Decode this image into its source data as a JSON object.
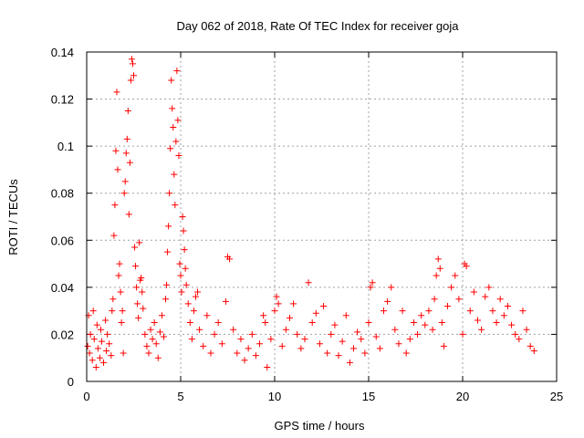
{
  "chart_data": {
    "type": "scatter",
    "title": "Day 062 of 2018, Rate Of TEC Index for receiver goja",
    "xlabel": "GPS time / hours",
    "ylabel": "ROTI / TECUs",
    "xlim": [
      0,
      25
    ],
    "ylim": [
      0,
      0.14
    ],
    "xticks": [
      0,
      5,
      10,
      15,
      20,
      25
    ],
    "xtick_labels": [
      "0",
      "5",
      "10",
      "15",
      "20",
      "25"
    ],
    "yticks": [
      0,
      0.02,
      0.04,
      0.06,
      0.08,
      0.1,
      0.12,
      0.14
    ],
    "ytick_labels": [
      "0",
      "0.02",
      "0.04",
      "0.06",
      "0.08",
      "0.1",
      "0.12",
      "0.14"
    ],
    "grid": true,
    "marker": "+",
    "color": "#ff0000",
    "series": [
      {
        "name": "ROTI",
        "points": [
          [
            0.05,
            0.015
          ],
          [
            0.1,
            0.028
          ],
          [
            0.15,
            0.012
          ],
          [
            0.2,
            0.02
          ],
          [
            0.3,
            0.009
          ],
          [
            0.35,
            0.03
          ],
          [
            0.4,
            0.018
          ],
          [
            0.5,
            0.006
          ],
          [
            0.55,
            0.024
          ],
          [
            0.6,
            0.014
          ],
          [
            0.7,
            0.01
          ],
          [
            0.75,
            0.022
          ],
          [
            0.8,
            0.017
          ],
          [
            0.9,
            0.008
          ],
          [
            1.0,
            0.026
          ],
          [
            1.05,
            0.013
          ],
          [
            1.1,
            0.02
          ],
          [
            1.2,
            0.016
          ],
          [
            1.3,
            0.011
          ],
          [
            1.35,
            0.03
          ],
          [
            1.4,
            0.035
          ],
          [
            1.45,
            0.062
          ],
          [
            1.5,
            0.075
          ],
          [
            1.55,
            0.098
          ],
          [
            1.6,
            0.123
          ],
          [
            1.65,
            0.09
          ],
          [
            1.7,
            0.045
          ],
          [
            1.75,
            0.05
          ],
          [
            1.8,
            0.038
          ],
          [
            1.85,
            0.025
          ],
          [
            1.9,
            0.03
          ],
          [
            1.95,
            0.012
          ],
          [
            2.0,
            0.08
          ],
          [
            2.05,
            0.085
          ],
          [
            2.1,
            0.097
          ],
          [
            2.15,
            0.103
          ],
          [
            2.2,
            0.115
          ],
          [
            2.25,
            0.071
          ],
          [
            2.3,
            0.093
          ],
          [
            2.35,
            0.128
          ],
          [
            2.4,
            0.137
          ],
          [
            2.45,
            0.135
          ],
          [
            2.5,
            0.13
          ],
          [
            2.55,
            0.057
          ],
          [
            2.6,
            0.049
          ],
          [
            2.65,
            0.04
          ],
          [
            2.7,
            0.033
          ],
          [
            2.75,
            0.027
          ],
          [
            2.8,
            0.059
          ],
          [
            2.85,
            0.043
          ],
          [
            2.9,
            0.044
          ],
          [
            2.95,
            0.038
          ],
          [
            3.0,
            0.031
          ],
          [
            3.1,
            0.02
          ],
          [
            3.2,
            0.015
          ],
          [
            3.3,
            0.012
          ],
          [
            3.4,
            0.022
          ],
          [
            3.5,
            0.018
          ],
          [
            3.6,
            0.025
          ],
          [
            3.7,
            0.016
          ],
          [
            3.8,
            0.01
          ],
          [
            3.9,
            0.021
          ],
          [
            4.0,
            0.028
          ],
          [
            4.1,
            0.019
          ],
          [
            4.2,
            0.035
          ],
          [
            4.25,
            0.041
          ],
          [
            4.3,
            0.055
          ],
          [
            4.35,
            0.066
          ],
          [
            4.4,
            0.08
          ],
          [
            4.45,
            0.099
          ],
          [
            4.5,
            0.128
          ],
          [
            4.55,
            0.116
          ],
          [
            4.6,
            0.108
          ],
          [
            4.65,
            0.088
          ],
          [
            4.7,
            0.075
          ],
          [
            4.75,
            0.102
          ],
          [
            4.8,
            0.132
          ],
          [
            4.85,
            0.111
          ],
          [
            4.9,
            0.096
          ],
          [
            4.95,
            0.05
          ],
          [
            5.0,
            0.045
          ],
          [
            5.05,
            0.038
          ],
          [
            5.1,
            0.07
          ],
          [
            5.15,
            0.064
          ],
          [
            5.2,
            0.056
          ],
          [
            5.25,
            0.048
          ],
          [
            5.3,
            0.041
          ],
          [
            5.4,
            0.033
          ],
          [
            5.5,
            0.025
          ],
          [
            5.6,
            0.018
          ],
          [
            5.7,
            0.03
          ],
          [
            5.8,
            0.036
          ],
          [
            5.9,
            0.038
          ],
          [
            6.0,
            0.022
          ],
          [
            6.2,
            0.015
          ],
          [
            6.4,
            0.028
          ],
          [
            6.6,
            0.012
          ],
          [
            6.8,
            0.02
          ],
          [
            7.0,
            0.025
          ],
          [
            7.2,
            0.016
          ],
          [
            7.4,
            0.034
          ],
          [
            7.5,
            0.053
          ],
          [
            7.6,
            0.052
          ],
          [
            7.8,
            0.022
          ],
          [
            8.0,
            0.012
          ],
          [
            8.2,
            0.018
          ],
          [
            8.4,
            0.009
          ],
          [
            8.6,
            0.014
          ],
          [
            8.8,
            0.02
          ],
          [
            9.0,
            0.011
          ],
          [
            9.2,
            0.016
          ],
          [
            9.4,
            0.028
          ],
          [
            9.5,
            0.025
          ],
          [
            9.6,
            0.006
          ],
          [
            9.8,
            0.018
          ],
          [
            10.0,
            0.03
          ],
          [
            10.1,
            0.036
          ],
          [
            10.2,
            0.033
          ],
          [
            10.4,
            0.015
          ],
          [
            10.6,
            0.022
          ],
          [
            10.8,
            0.027
          ],
          [
            11.0,
            0.033
          ],
          [
            11.2,
            0.02
          ],
          [
            11.4,
            0.014
          ],
          [
            11.6,
            0.018
          ],
          [
            11.8,
            0.042
          ],
          [
            12.0,
            0.025
          ],
          [
            12.2,
            0.029
          ],
          [
            12.4,
            0.016
          ],
          [
            12.6,
            0.032
          ],
          [
            12.8,
            0.012
          ],
          [
            13.0,
            0.02
          ],
          [
            13.2,
            0.024
          ],
          [
            13.4,
            0.011
          ],
          [
            13.6,
            0.017
          ],
          [
            13.8,
            0.028
          ],
          [
            14.0,
            0.008
          ],
          [
            14.2,
            0.014
          ],
          [
            14.4,
            0.021
          ],
          [
            14.6,
            0.018
          ],
          [
            14.8,
            0.012
          ],
          [
            15.0,
            0.025
          ],
          [
            15.1,
            0.04
          ],
          [
            15.2,
            0.042
          ],
          [
            15.4,
            0.019
          ],
          [
            15.6,
            0.014
          ],
          [
            15.8,
            0.03
          ],
          [
            16.0,
            0.034
          ],
          [
            16.2,
            0.04
          ],
          [
            16.4,
            0.022
          ],
          [
            16.6,
            0.016
          ],
          [
            16.8,
            0.03
          ],
          [
            17.0,
            0.012
          ],
          [
            17.2,
            0.018
          ],
          [
            17.4,
            0.025
          ],
          [
            17.6,
            0.02
          ],
          [
            17.8,
            0.028
          ],
          [
            18.0,
            0.024
          ],
          [
            18.2,
            0.03
          ],
          [
            18.4,
            0.022
          ],
          [
            18.5,
            0.035
          ],
          [
            18.6,
            0.045
          ],
          [
            18.7,
            0.052
          ],
          [
            18.8,
            0.048
          ],
          [
            18.9,
            0.025
          ],
          [
            19.0,
            0.015
          ],
          [
            19.2,
            0.032
          ],
          [
            19.4,
            0.04
          ],
          [
            19.6,
            0.045
          ],
          [
            19.8,
            0.035
          ],
          [
            20.0,
            0.02
          ],
          [
            20.1,
            0.05
          ],
          [
            20.2,
            0.049
          ],
          [
            20.4,
            0.03
          ],
          [
            20.6,
            0.038
          ],
          [
            20.8,
            0.026
          ],
          [
            21.0,
            0.022
          ],
          [
            21.2,
            0.036
          ],
          [
            21.4,
            0.04
          ],
          [
            21.6,
            0.03
          ],
          [
            21.8,
            0.025
          ],
          [
            22.0,
            0.035
          ],
          [
            22.2,
            0.028
          ],
          [
            22.4,
            0.032
          ],
          [
            22.6,
            0.024
          ],
          [
            22.8,
            0.02
          ],
          [
            23.0,
            0.018
          ],
          [
            23.2,
            0.03
          ],
          [
            23.4,
            0.022
          ],
          [
            23.6,
            0.015
          ],
          [
            23.8,
            0.013
          ]
        ]
      }
    ]
  }
}
